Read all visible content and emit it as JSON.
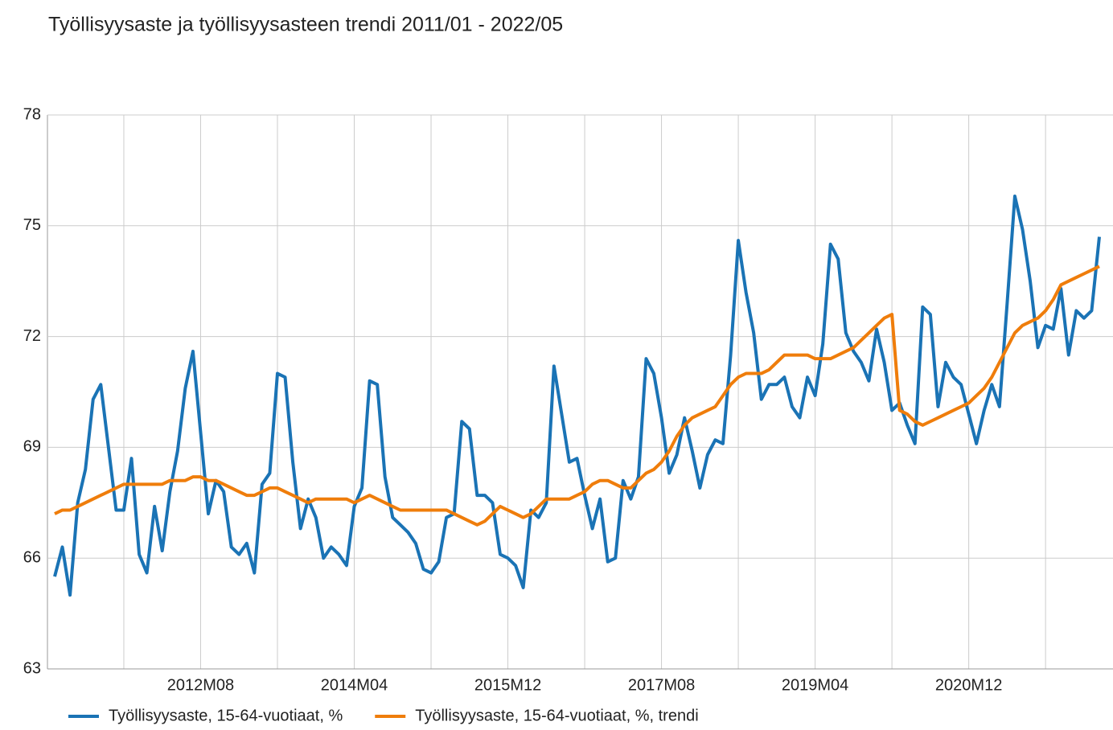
{
  "chart_data": {
    "type": "line",
    "title": "Työllisyysaste ja työllisyysasteen trendi 2011/01 - 2022/05",
    "categories": [
      null,
      null,
      null,
      null,
      null,
      null,
      null,
      null,
      null,
      null,
      null,
      null,
      null,
      null,
      null,
      null,
      null,
      null,
      null,
      "2012M08",
      null,
      null,
      null,
      null,
      null,
      null,
      null,
      null,
      null,
      null,
      null,
      null,
      null,
      null,
      null,
      null,
      null,
      null,
      null,
      "2014M04",
      null,
      null,
      null,
      null,
      null,
      null,
      null,
      null,
      null,
      null,
      null,
      null,
      null,
      null,
      null,
      null,
      null,
      null,
      null,
      "2015M12",
      null,
      null,
      null,
      null,
      null,
      null,
      null,
      null,
      null,
      null,
      null,
      null,
      null,
      null,
      null,
      null,
      null,
      null,
      null,
      "2017M08",
      null,
      null,
      null,
      null,
      null,
      null,
      null,
      null,
      null,
      null,
      null,
      null,
      null,
      null,
      null,
      null,
      null,
      null,
      null,
      "2019M04",
      null,
      null,
      null,
      null,
      null,
      null,
      null,
      null,
      null,
      null,
      null,
      null,
      null,
      null,
      null,
      null,
      null,
      null,
      null,
      "2020M12",
      null,
      null,
      null,
      null,
      null,
      null,
      null,
      null,
      null,
      null,
      null,
      null,
      null,
      null,
      null,
      null,
      null
    ],
    "series": [
      {
        "name": "Työllisyysaste, 15-64-vuotiaat, %",
        "color": "#1a73b5",
        "values": [
          65.5,
          66.3,
          65.0,
          67.5,
          68.4,
          70.3,
          70.7,
          69.0,
          67.3,
          67.3,
          68.7,
          66.1,
          65.6,
          67.4,
          66.2,
          67.8,
          68.9,
          70.6,
          71.6,
          69.4,
          67.2,
          68.1,
          67.8,
          66.3,
          66.1,
          66.4,
          65.6,
          68.0,
          68.3,
          71.0,
          70.9,
          68.6,
          66.8,
          67.6,
          67.1,
          66.0,
          66.3,
          66.1,
          65.8,
          67.4,
          67.9,
          70.8,
          70.7,
          68.2,
          67.1,
          66.9,
          66.7,
          66.4,
          65.7,
          65.6,
          65.9,
          67.1,
          67.2,
          69.7,
          69.5,
          67.7,
          67.7,
          67.5,
          66.1,
          66.0,
          65.8,
          65.2,
          67.3,
          67.1,
          67.5,
          71.2,
          69.9,
          68.6,
          68.7,
          67.7,
          66.8,
          67.6,
          65.9,
          66.0,
          68.1,
          67.6,
          68.2,
          71.4,
          71.0,
          69.8,
          68.3,
          68.8,
          69.8,
          68.9,
          67.9,
          68.8,
          69.2,
          69.1,
          71.5,
          74.6,
          73.2,
          72.1,
          70.3,
          70.7,
          70.7,
          70.9,
          70.1,
          69.8,
          70.9,
          70.4,
          71.8,
          74.5,
          74.1,
          72.1,
          71.6,
          71.3,
          70.8,
          72.2,
          71.3,
          70.0,
          70.2,
          69.6,
          69.1,
          72.8,
          72.6,
          70.1,
          71.3,
          70.9,
          70.7,
          69.9,
          69.1,
          70.0,
          70.7,
          70.1,
          72.9,
          75.8,
          74.9,
          73.5,
          71.7,
          72.3,
          72.2,
          73.3,
          71.5,
          72.7,
          72.5,
          72.7,
          74.7
        ]
      },
      {
        "name": "Työllisyysaste, 15-64-vuotiaat, %, trendi",
        "color": "#ef7d0b",
        "values": [
          67.2,
          67.3,
          67.3,
          67.4,
          67.5,
          67.6,
          67.7,
          67.8,
          67.9,
          68.0,
          68.0,
          68.0,
          68.0,
          68.0,
          68.0,
          68.1,
          68.1,
          68.1,
          68.2,
          68.2,
          68.1,
          68.1,
          68.0,
          67.9,
          67.8,
          67.7,
          67.7,
          67.8,
          67.9,
          67.9,
          67.8,
          67.7,
          67.6,
          67.5,
          67.6,
          67.6,
          67.6,
          67.6,
          67.6,
          67.5,
          67.6,
          67.7,
          67.6,
          67.5,
          67.4,
          67.3,
          67.3,
          67.3,
          67.3,
          67.3,
          67.3,
          67.3,
          67.2,
          67.1,
          67.0,
          66.9,
          67.0,
          67.2,
          67.4,
          67.3,
          67.2,
          67.1,
          67.2,
          67.4,
          67.6,
          67.6,
          67.6,
          67.6,
          67.7,
          67.8,
          68.0,
          68.1,
          68.1,
          68.0,
          67.9,
          67.9,
          68.1,
          68.3,
          68.4,
          68.6,
          68.9,
          69.3,
          69.6,
          69.8,
          69.9,
          70.0,
          70.1,
          70.4,
          70.7,
          70.9,
          71.0,
          71.0,
          71.0,
          71.1,
          71.3,
          71.5,
          71.5,
          71.5,
          71.5,
          71.4,
          71.4,
          71.4,
          71.5,
          71.6,
          71.7,
          71.9,
          72.1,
          72.3,
          72.5,
          72.6,
          70.0,
          69.9,
          69.7,
          69.6,
          69.7,
          69.8,
          69.9,
          70.0,
          70.1,
          70.2,
          70.4,
          70.6,
          70.9,
          71.3,
          71.7,
          72.1,
          72.3,
          72.4,
          72.5,
          72.7,
          73.0,
          73.4,
          73.5,
          73.6,
          73.7,
          73.8,
          73.9
        ]
      }
    ],
    "ylim": [
      63,
      78
    ],
    "yticks": [
      63,
      66,
      69,
      72,
      75,
      78
    ],
    "grid": true
  }
}
